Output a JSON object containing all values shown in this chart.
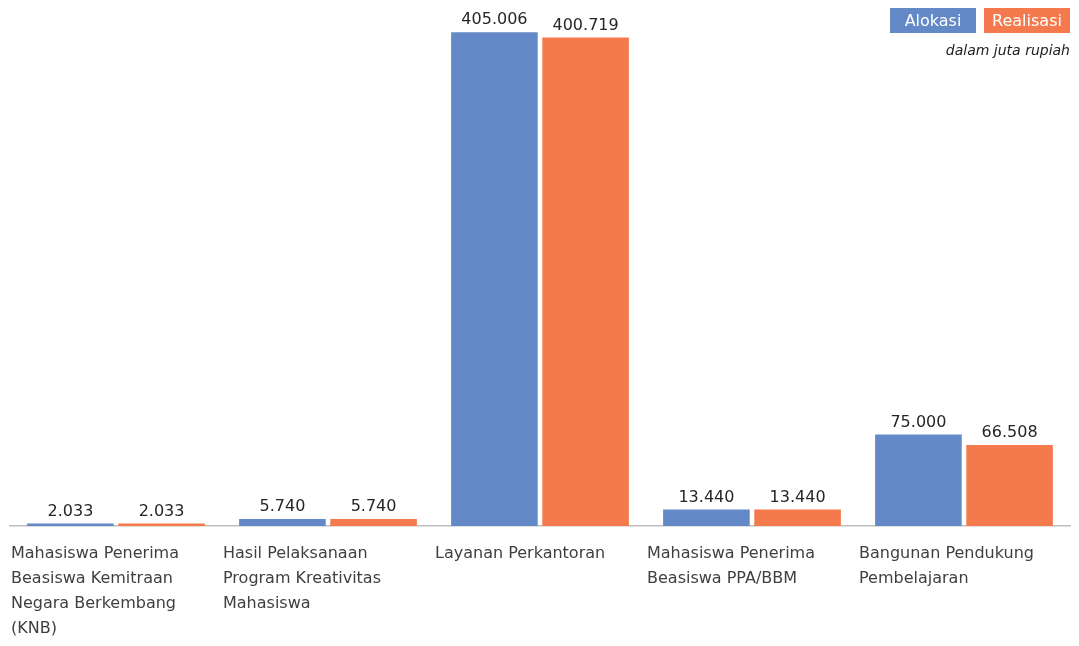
{
  "chart_data": {
    "type": "bar",
    "categories": [
      "Mahasiswa Penerima Beasiswa Kemitraan Negara Berkembang (KNB)",
      "Hasil Pelaksanaan Program Kreativitas Mahasiswa",
      "Layanan Perkantoran",
      "Mahasiswa Penerima Beasiswa PPA/BBM",
      "Bangunan Pendukung Pembelajaran"
    ],
    "series": [
      {
        "name": "Alokasi",
        "color": "#6389c7",
        "values": [
          2033,
          5740,
          405006,
          13440,
          75000
        ],
        "value_labels": [
          "2.033",
          "5.740",
          "405.006",
          "13.440",
          "75.000"
        ]
      },
      {
        "name": "Realisasi",
        "color": "#f47a4e",
        "values": [
          2033,
          5740,
          400719,
          13440,
          66508
        ],
        "value_labels": [
          "2.033",
          "5.740",
          "400.719",
          "13.440",
          "66.508"
        ]
      }
    ],
    "legend": "top right",
    "annotations": [
      "dalam juta rupiah"
    ]
  }
}
